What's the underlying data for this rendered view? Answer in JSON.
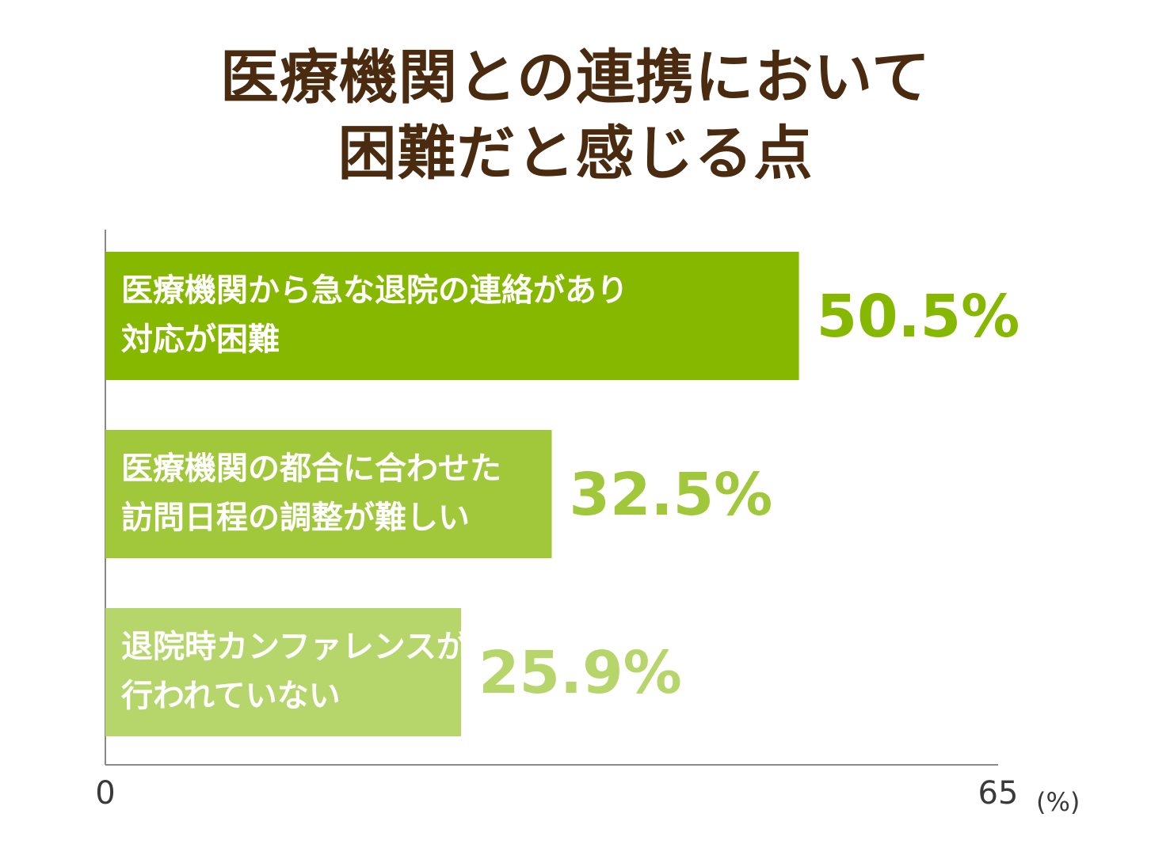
{
  "chart_data": {
    "type": "bar",
    "orientation": "horizontal",
    "title_lines": [
      "医療機関との連携において",
      "困難だと感じる点"
    ],
    "categories": [
      [
        "医療機関から急な退院の連絡があり",
        "対応が困難"
      ],
      [
        "医療機関の都合に合わせた",
        "訪問日程の調整が難しい"
      ],
      [
        "退院時カンファレンスが",
        "行われていない"
      ]
    ],
    "values": [
      50.5,
      32.5,
      25.9
    ],
    "value_labels": [
      "50.5%",
      "32.5%",
      "25.9%"
    ],
    "colors": [
      "#86b800",
      "#a0c83a",
      "#b6d66b"
    ],
    "xlim": [
      0,
      65
    ],
    "x_tick_labels": [
      "0",
      "65"
    ],
    "unit_label": "(%)",
    "grid": false,
    "legend": "none"
  }
}
